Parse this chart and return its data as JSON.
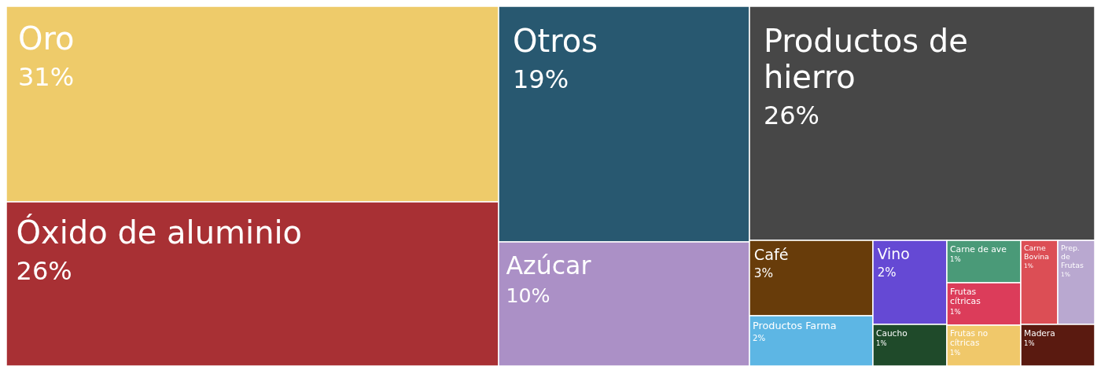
{
  "chart_data": {
    "type": "other",
    "categories": [
      "Oro",
      "Óxido de aluminio",
      "Otros",
      "Azúcar",
      "Productos de hierro",
      "Café",
      "Productos Farma",
      "Vino",
      "Caucho",
      "Carne de ave",
      "Frutas cítricas",
      "Frutas no cítricas",
      "Carne Bovina",
      "Prep. de Frutas",
      "Madera"
    ],
    "values": [
      31,
      26,
      19,
      10,
      26,
      3,
      2,
      2,
      1,
      1,
      1,
      1,
      1,
      1,
      1
    ],
    "value_labels": [
      "31%",
      "26%",
      "19%",
      "10%",
      "26%",
      "3%",
      "2%",
      "2%",
      "1%",
      "1%",
      "1%",
      "1%",
      "1%",
      "1%",
      "1%"
    ],
    "colors": [
      "#eecb6a",
      "#a83034",
      "#285870",
      "#ab90c6",
      "#474747",
      "#683c0a",
      "#5db6e4",
      "#6549d4",
      "#1f4a2a",
      "#4a9a78",
      "#dc3c5a",
      "#f0c86a",
      "#dc4e55",
      "#b9a8d0",
      "#5a1a10"
    ]
  }
}
